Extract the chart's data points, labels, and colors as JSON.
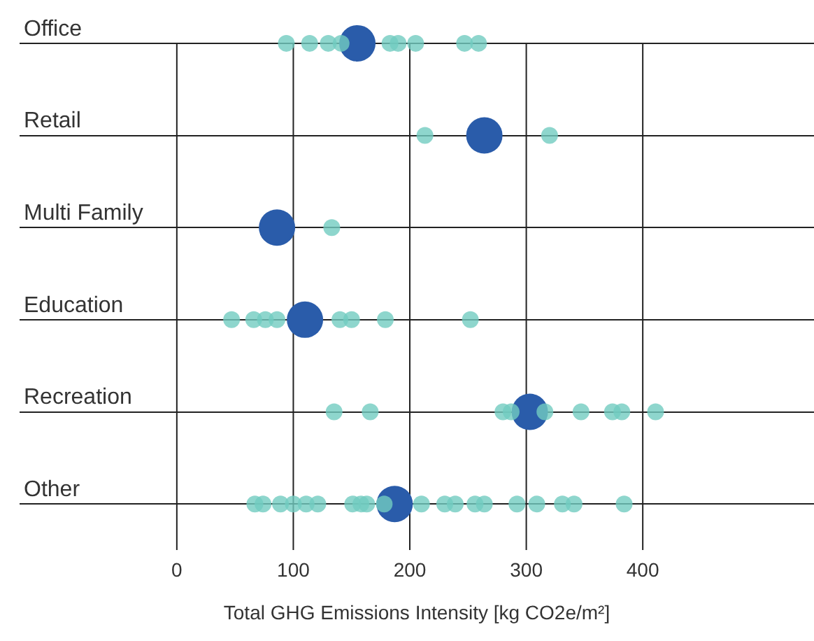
{
  "chart_data": {
    "type": "scatter",
    "orientation": "horizontal",
    "xlabel": "Total GHG Emissions Intensity [kg CO2e/m²]",
    "categories": [
      "Office",
      "Retail",
      "Multi Family",
      "Education",
      "Recreation",
      "Other"
    ],
    "series": [
      {
        "color": "#72ccc0",
        "values": [
          94,
          213,
          133,
          47,
          135,
          67
        ]
      },
      {
        "color": "#72ccc0",
        "values": [
          114,
          320,
          null,
          66,
          166,
          74
        ]
      },
      {
        "color": "#72ccc0",
        "values": [
          130,
          null,
          null,
          76,
          280,
          89
        ]
      },
      {
        "color": "#72ccc0",
        "values": [
          141,
          null,
          null,
          86,
          287,
          100
        ]
      },
      {
        "color": "#72ccc0",
        "values": [
          183,
          null,
          null,
          140,
          316,
          111
        ]
      },
      {
        "color": "#72ccc0",
        "values": [
          190,
          null,
          null,
          150,
          347,
          121
        ]
      },
      {
        "color": "#72ccc0",
        "values": [
          205,
          null,
          null,
          179,
          374,
          151
        ]
      },
      {
        "color": "#72ccc0",
        "values": [
          247,
          null,
          null,
          252,
          382,
          158
        ]
      },
      {
        "color": "#72ccc0",
        "values": [
          259,
          null,
          null,
          null,
          411,
          163
        ]
      },
      {
        "color": "#72ccc0",
        "values": [
          null,
          null,
          null,
          null,
          null,
          178
        ]
      },
      {
        "color": "#72ccc0",
        "values": [
          null,
          null,
          null,
          null,
          null,
          210
        ]
      },
      {
        "color": "#72ccc0",
        "values": [
          null,
          null,
          null,
          null,
          null,
          230
        ]
      },
      {
        "color": "#72ccc0",
        "values": [
          null,
          null,
          null,
          null,
          null,
          239
        ]
      },
      {
        "color": "#72ccc0",
        "values": [
          null,
          null,
          null,
          null,
          null,
          256
        ]
      },
      {
        "color": "#72ccc0",
        "values": [
          null,
          null,
          null,
          null,
          null,
          264
        ]
      },
      {
        "color": "#72ccc0",
        "values": [
          null,
          null,
          null,
          null,
          null,
          292
        ]
      },
      {
        "color": "#72ccc0",
        "values": [
          null,
          null,
          null,
          null,
          null,
          309
        ]
      },
      {
        "color": "#72ccc0",
        "values": [
          null,
          null,
          null,
          null,
          null,
          331
        ]
      },
      {
        "color": "#72ccc0",
        "values": [
          null,
          null,
          null,
          null,
          null,
          341
        ]
      },
      {
        "color": "#72ccc0",
        "values": [
          null,
          null,
          null,
          null,
          null,
          384
        ]
      },
      {
        "color": "#2a5caa",
        "values": [
          155,
          264,
          86,
          110,
          303,
          187
        ]
      }
    ],
    "xlim": [
      -135,
      547
    ],
    "xticks": [
      0,
      100,
      200,
      300,
      400
    ],
    "grid": true,
    "legend": false,
    "marker": "circle"
  }
}
